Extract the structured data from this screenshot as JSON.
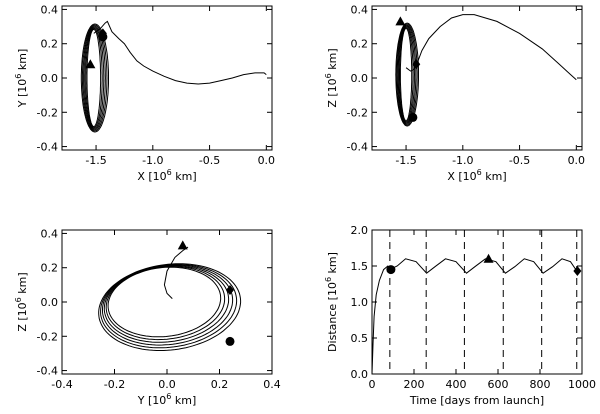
{
  "chart_data": [
    {
      "type": "line",
      "id": "panel-xy",
      "xlabel_main": "X [10",
      "xlabel_exp": "6",
      "xlabel_unit": " km]",
      "ylabel_main": "Y [10",
      "ylabel_exp": "6",
      "ylabel_unit": " km]",
      "xlim": [
        -1.8,
        0.05
      ],
      "ylim": [
        -0.42,
        0.42
      ],
      "xticks": [
        -1.5,
        -1.0,
        -0.5,
        0.0
      ],
      "xtick_labels": [
        "-1.5",
        "-1.0",
        "-0.5",
        "0.0"
      ],
      "yticks": [
        -0.4,
        -0.2,
        0.0,
        0.2,
        0.4
      ],
      "ytick_labels": [
        "-0.4",
        "-0.2",
        "0.0",
        "0.2",
        "0.4"
      ],
      "transfer": [
        [
          0.0,
          0.02
        ],
        [
          -0.02,
          0.03
        ],
        [
          -0.1,
          0.03
        ],
        [
          -0.2,
          0.02
        ],
        [
          -0.3,
          0.0
        ],
        [
          -0.4,
          -0.015
        ],
        [
          -0.5,
          -0.03
        ],
        [
          -0.6,
          -0.035
        ],
        [
          -0.7,
          -0.03
        ],
        [
          -0.8,
          -0.015
        ],
        [
          -0.9,
          0.01
        ],
        [
          -1.0,
          0.04
        ],
        [
          -1.08,
          0.07
        ],
        [
          -1.14,
          0.1
        ],
        [
          -1.2,
          0.15
        ],
        [
          -1.25,
          0.2
        ],
        [
          -1.3,
          0.23
        ],
        [
          -1.36,
          0.27
        ],
        [
          -1.4,
          0.33
        ],
        [
          -1.42,
          0.32
        ],
        [
          -1.46,
          0.29
        ],
        [
          -1.52,
          0.26
        ]
      ],
      "halo": {
        "center": [
          -1.52,
          0.0
        ],
        "ry": 0.315,
        "rx_min": 0.06,
        "rx_max": 0.12,
        "loops": 6
      },
      "markers": [
        {
          "shape": "triangle",
          "x": -1.55,
          "y": 0.08
        },
        {
          "shape": "diamond",
          "x": -1.44,
          "y": 0.26
        },
        {
          "shape": "circle",
          "x": -1.44,
          "y": 0.24
        }
      ]
    },
    {
      "type": "line",
      "id": "panel-xz",
      "xlabel_main": "X [10",
      "xlabel_exp": "6",
      "xlabel_unit": " km]",
      "ylabel_main": "Z [10",
      "ylabel_exp": "6",
      "ylabel_unit": " km]",
      "xlim": [
        -1.8,
        0.05
      ],
      "ylim": [
        -0.42,
        0.42
      ],
      "xticks": [
        -1.5,
        -1.0,
        -0.5,
        0.0
      ],
      "xtick_labels": [
        "-1.5",
        "-1.0",
        "-0.5",
        "0.0"
      ],
      "yticks": [
        -0.4,
        -0.2,
        0.0,
        0.2,
        0.4
      ],
      "ytick_labels": [
        "-0.4",
        "-0.2",
        "0.0",
        "0.2",
        "0.4"
      ],
      "transfer": [
        [
          0.0,
          -0.01
        ],
        [
          -0.05,
          0.02
        ],
        [
          -0.15,
          0.08
        ],
        [
          -0.3,
          0.17
        ],
        [
          -0.5,
          0.26
        ],
        [
          -0.7,
          0.33
        ],
        [
          -0.9,
          0.37
        ],
        [
          -1.0,
          0.37
        ],
        [
          -1.1,
          0.35
        ],
        [
          -1.2,
          0.3
        ],
        [
          -1.3,
          0.23
        ],
        [
          -1.36,
          0.16
        ],
        [
          -1.4,
          0.09
        ],
        [
          -1.43,
          0.05
        ],
        [
          -1.46,
          0.04
        ],
        [
          -1.5,
          0.06
        ]
      ],
      "halo": {
        "center": [
          -1.5,
          0.02
        ],
        "ry": 0.3,
        "rx_min": 0.05,
        "rx_max": 0.1,
        "loops": 6
      },
      "markers": [
        {
          "shape": "triangle",
          "x": -1.55,
          "y": 0.33
        },
        {
          "shape": "diamond",
          "x": -1.41,
          "y": 0.08
        },
        {
          "shape": "circle",
          "x": -1.44,
          "y": -0.23
        }
      ]
    },
    {
      "type": "line",
      "id": "panel-yz",
      "xlabel_main": "Y [10",
      "xlabel_exp": "6",
      "xlabel_unit": " km]",
      "ylabel_main": "Z [10",
      "ylabel_exp": "6",
      "ylabel_unit": " km]",
      "xlim": [
        -0.4,
        0.4
      ],
      "ylim": [
        -0.42,
        0.42
      ],
      "xticks": [
        -0.4,
        -0.2,
        0.0,
        0.2,
        0.4
      ],
      "xtick_labels": [
        "-0.4",
        "-0.2",
        "0.0",
        "0.2",
        "0.4"
      ],
      "yticks": [
        -0.4,
        -0.2,
        0.0,
        0.2,
        0.4
      ],
      "ytick_labels": [
        "-0.4",
        "-0.2",
        "0.0",
        "0.2",
        "0.4"
      ],
      "transfer": [
        [
          0.02,
          0.02
        ],
        [
          0.0,
          0.05
        ],
        [
          -0.01,
          0.1
        ],
        [
          0.0,
          0.18
        ],
        [
          0.03,
          0.26
        ],
        [
          0.06,
          0.3
        ],
        [
          0.08,
          0.32
        ]
      ],
      "halo": {
        "center": [
          0.0,
          0.0
        ],
        "a": 0.27,
        "b": 0.23,
        "tilt_deg": 32,
        "loops": 6
      },
      "markers": [
        {
          "shape": "triangle",
          "x": 0.06,
          "y": 0.33
        },
        {
          "shape": "diamond",
          "x": 0.24,
          "y": 0.07
        },
        {
          "shape": "circle",
          "x": 0.24,
          "y": -0.23
        }
      ]
    },
    {
      "type": "line",
      "id": "panel-dist",
      "xlabel_main": "Time [days from launch]",
      "ylabel_main": "Distance [10",
      "ylabel_exp": "6",
      "ylabel_unit": " km]",
      "xlim": [
        0,
        1000
      ],
      "ylim": [
        0.0,
        2.0
      ],
      "xticks": [
        0,
        200,
        400,
        600,
        800,
        1000
      ],
      "xtick_labels": [
        "0",
        "200",
        "400",
        "600",
        "800",
        "1000"
      ],
      "yticks": [
        0.0,
        0.5,
        1.0,
        1.5,
        2.0
      ],
      "ytick_labels": [
        "0.0",
        "0.5",
        "1.0",
        "1.5",
        "2.0"
      ],
      "dashed_days": [
        85,
        258,
        440,
        625,
        808,
        975
      ],
      "curve": [
        [
          0,
          0.0
        ],
        [
          5,
          0.45
        ],
        [
          10,
          0.8
        ],
        [
          20,
          1.1
        ],
        [
          35,
          1.3
        ],
        [
          55,
          1.45
        ],
        [
          75,
          1.5
        ],
        [
          90,
          1.46
        ],
        [
          120,
          1.5
        ],
        [
          160,
          1.6
        ],
        [
          210,
          1.56
        ],
        [
          260,
          1.4
        ],
        [
          300,
          1.49
        ],
        [
          350,
          1.6
        ],
        [
          400,
          1.56
        ],
        [
          450,
          1.4
        ],
        [
          490,
          1.49
        ],
        [
          540,
          1.6
        ],
        [
          590,
          1.56
        ],
        [
          635,
          1.4
        ],
        [
          680,
          1.49
        ],
        [
          725,
          1.6
        ],
        [
          770,
          1.56
        ],
        [
          815,
          1.4
        ],
        [
          860,
          1.49
        ],
        [
          905,
          1.6
        ],
        [
          945,
          1.56
        ],
        [
          975,
          1.43
        ]
      ],
      "markers": [
        {
          "shape": "circle",
          "x": 90,
          "y": 1.45
        },
        {
          "shape": "triangle",
          "x": 555,
          "y": 1.6
        },
        {
          "shape": "diamond",
          "x": 978,
          "y": 1.43
        }
      ]
    }
  ]
}
